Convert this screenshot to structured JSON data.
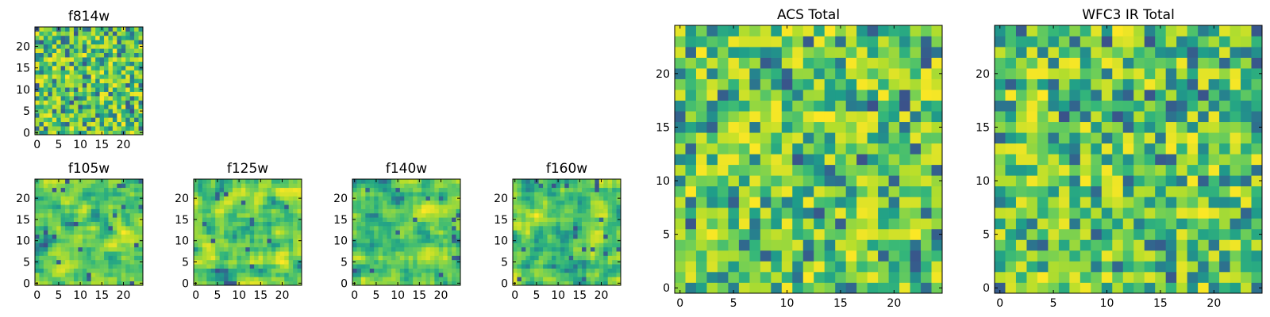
{
  "chart_data": [
    {
      "type": "heatmap",
      "id": "f814w",
      "title": "f814w",
      "seed": 814,
      "grid_size": 25,
      "xlim": [
        0,
        24
      ],
      "ylim": [
        0,
        24
      ],
      "xticks": [
        0,
        5,
        10,
        15,
        20
      ],
      "yticks": [
        0,
        5,
        10,
        15,
        20
      ],
      "colormap": "viridis",
      "texture": "noise"
    },
    {
      "type": "heatmap",
      "id": "f105w",
      "title": "f105w",
      "seed": 105,
      "grid_size": 25,
      "xlim": [
        0,
        24
      ],
      "ylim": [
        0,
        24
      ],
      "xticks": [
        0,
        5,
        10,
        15,
        20
      ],
      "yticks": [
        0,
        5,
        10,
        15,
        20
      ],
      "colormap": "viridis",
      "texture": "smooth"
    },
    {
      "type": "heatmap",
      "id": "f125w",
      "title": "f125w",
      "seed": 125,
      "grid_size": 25,
      "xlim": [
        0,
        24
      ],
      "ylim": [
        0,
        24
      ],
      "xticks": [
        0,
        5,
        10,
        15,
        20
      ],
      "yticks": [
        0,
        5,
        10,
        15,
        20
      ],
      "colormap": "viridis",
      "texture": "smooth"
    },
    {
      "type": "heatmap",
      "id": "f140w",
      "title": "f140w",
      "seed": 140,
      "grid_size": 25,
      "xlim": [
        0,
        24
      ],
      "ylim": [
        0,
        24
      ],
      "xticks": [
        0,
        5,
        10,
        15,
        20
      ],
      "yticks": [
        0,
        5,
        10,
        15,
        20
      ],
      "colormap": "viridis",
      "texture": "smooth"
    },
    {
      "type": "heatmap",
      "id": "f160w",
      "title": "f160w",
      "seed": 160,
      "grid_size": 25,
      "xlim": [
        0,
        24
      ],
      "ylim": [
        0,
        24
      ],
      "xticks": [
        0,
        5,
        10,
        15,
        20
      ],
      "yticks": [
        0,
        5,
        10,
        15,
        20
      ],
      "colormap": "viridis",
      "texture": "smooth"
    },
    {
      "type": "heatmap",
      "id": "acs_total",
      "title": "ACS Total",
      "seed": 1001,
      "grid_size": 25,
      "xlim": [
        0,
        24
      ],
      "ylim": [
        0,
        24
      ],
      "xticks": [
        0,
        5,
        10,
        15,
        20
      ],
      "yticks": [
        0,
        5,
        10,
        15,
        20
      ],
      "colormap": "viridis",
      "texture": "blocky"
    },
    {
      "type": "heatmap",
      "id": "wfc3_ir_total",
      "title": "WFC3 IR Total",
      "seed": 2002,
      "grid_size": 25,
      "xlim": [
        0,
        24
      ],
      "ylim": [
        0,
        24
      ],
      "xticks": [
        0,
        5,
        10,
        15,
        20
      ],
      "yticks": [
        0,
        5,
        10,
        15,
        20
      ],
      "colormap": "viridis",
      "texture": "blocky"
    }
  ]
}
